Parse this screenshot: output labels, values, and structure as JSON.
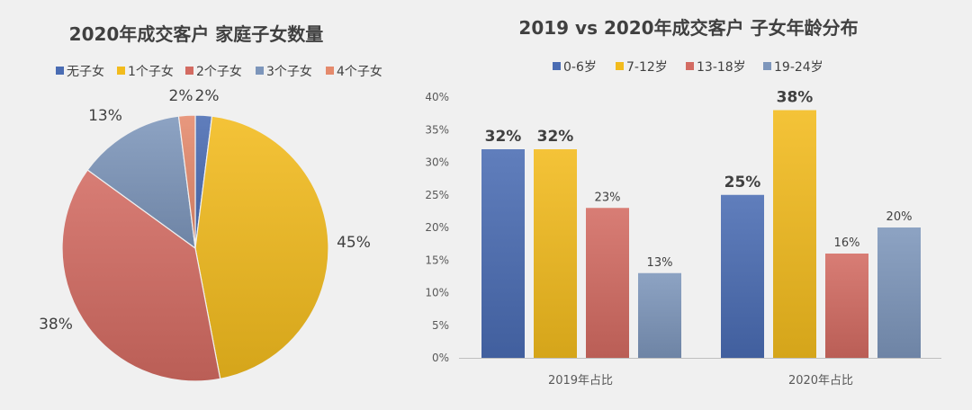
{
  "chart_data": [
    {
      "type": "pie",
      "title": "2020年成交客户 家庭子女数量",
      "categories": [
        "无子女",
        "1个子女",
        "2个子女",
        "3个子女",
        "4个子女"
      ],
      "values": [
        2,
        45,
        38,
        13,
        2
      ],
      "data_labels": [
        "2%",
        "45%",
        "38%",
        "13%",
        "2%"
      ],
      "colors": [
        "#4a6cb3",
        "#f2bb1d",
        "#d36b62",
        "#7d96bb",
        "#e58a6c"
      ],
      "legend": "top"
    },
    {
      "type": "bar",
      "title": "2019 vs 2020年成交客户 子女年龄分布",
      "categories": [
        "2019年占比",
        "2020年占比"
      ],
      "series": [
        {
          "name": "0-6岁",
          "values": [
            32,
            25
          ],
          "labels": [
            "32%",
            "25%"
          ],
          "color": "#4a6cb3"
        },
        {
          "name": "7-12岁",
          "values": [
            32,
            38
          ],
          "labels": [
            "32%",
            "38%"
          ],
          "color": "#f2bb1d"
        },
        {
          "name": "13-18岁",
          "values": [
            23,
            16
          ],
          "labels": [
            "23%",
            "16%"
          ],
          "color": "#d36b62"
        },
        {
          "name": "19-24岁",
          "values": [
            13,
            20
          ],
          "labels": [
            "13%",
            "20%"
          ],
          "color": "#7d96bb"
        }
      ],
      "ylim": [
        0,
        40
      ],
      "yticks": [
        "0%",
        "5%",
        "10%",
        "15%",
        "20%",
        "25%",
        "30%",
        "35%",
        "40%"
      ],
      "ytick_values": [
        0,
        5,
        10,
        15,
        20,
        25,
        30,
        35,
        40
      ],
      "legend": "top"
    }
  ]
}
